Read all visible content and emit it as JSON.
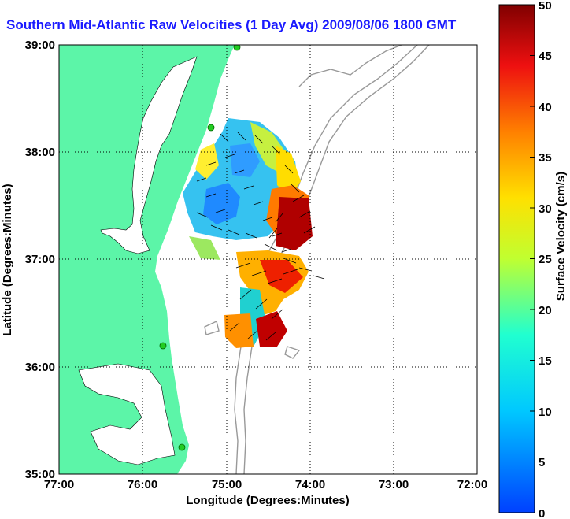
{
  "title": "Southern Mid-Atlantic Raw Velocities (1 Day Avg) 2009/08/06 1800 GMT",
  "map": {
    "xlabel": "Longitude (Degrees:Minutes)",
    "ylabel": "Latitude (Degrees:Minutes)",
    "x_ticks": [
      "77:00",
      "76:00",
      "75:00",
      "74:00",
      "73:00",
      "72:00"
    ],
    "y_ticks": [
      "39:00",
      "38:00",
      "37:00",
      "36:00",
      "35:00"
    ],
    "lon_range": [
      -77,
      -72
    ],
    "lat_range": [
      35,
      39
    ],
    "grid": "dotted",
    "land_color": "#5cf5a8",
    "water_color": "#ffffff",
    "station_color": "#22cc22"
  },
  "colorbar": {
    "label": "Surface Velocity (cm/s)",
    "ticks": [
      "0",
      "5",
      "10",
      "15",
      "20",
      "25",
      "30",
      "35",
      "40",
      "45",
      "50"
    ],
    "range": [
      0,
      50
    ],
    "colormap": "jet"
  }
}
